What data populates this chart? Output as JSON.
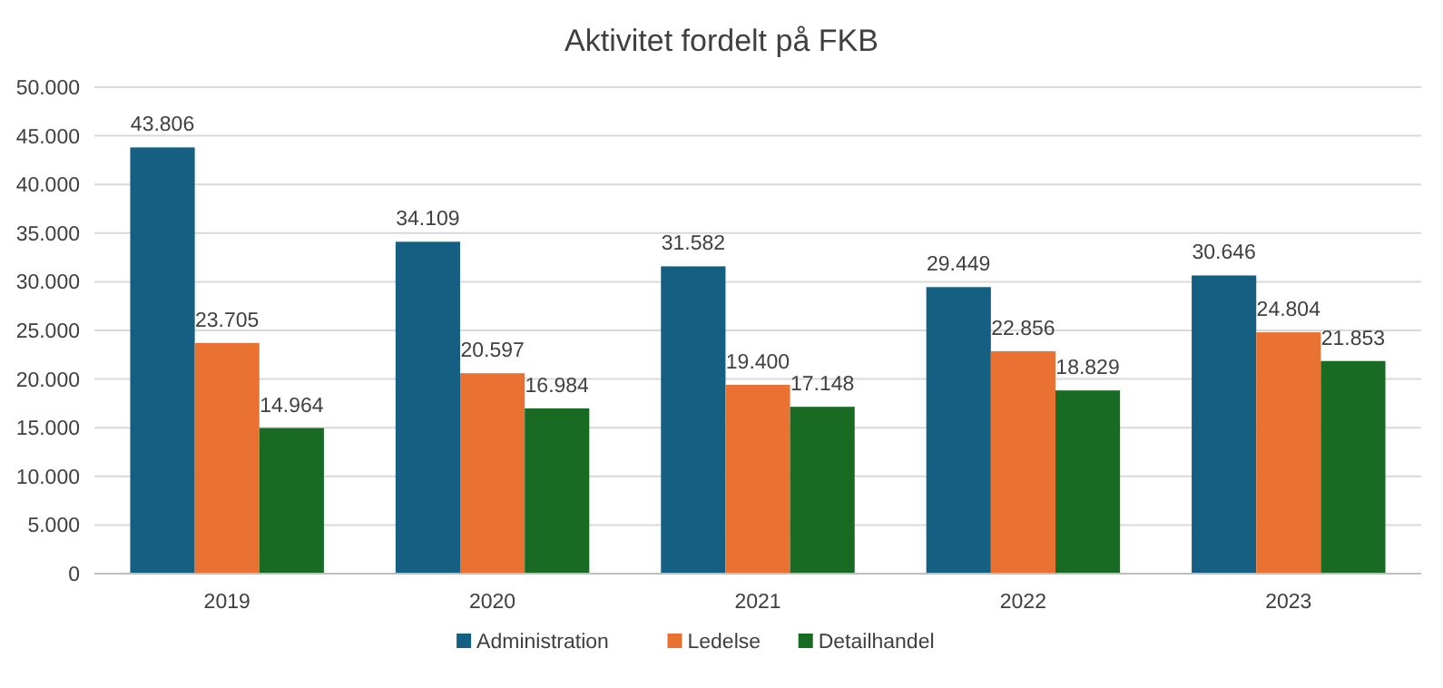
{
  "chart_data": {
    "type": "bar",
    "title": "Aktivitet fordelt på FKB",
    "categories": [
      "2019",
      "2020",
      "2021",
      "2022",
      "2023"
    ],
    "series": [
      {
        "name": "Administration",
        "color": "#156082",
        "values": [
          43806,
          34109,
          31582,
          29449,
          30646
        ],
        "value_labels": [
          "43.806",
          "34.109",
          "31.582",
          "29.449",
          "30.646"
        ]
      },
      {
        "name": "Ledelse",
        "color": "#e97132",
        "values": [
          23705,
          20597,
          19400,
          22856,
          24804
        ],
        "value_labels": [
          "23.705",
          "20.597",
          "19.400",
          "22.856",
          "24.804"
        ]
      },
      {
        "name": "Detailhandel",
        "color": "#196b24",
        "values": [
          14964,
          16984,
          17148,
          18829,
          21853
        ],
        "value_labels": [
          "14.964",
          "16.984",
          "17.148",
          "18.829",
          "21.853"
        ]
      }
    ],
    "ylim": [
      0,
      50000
    ],
    "yticks": [
      {
        "value": 0,
        "label": "0"
      },
      {
        "value": 5000,
        "label": "5.000"
      },
      {
        "value": 10000,
        "label": "10.000"
      },
      {
        "value": 15000,
        "label": "15.000"
      },
      {
        "value": 20000,
        "label": "20.000"
      },
      {
        "value": 25000,
        "label": "25.000"
      },
      {
        "value": 30000,
        "label": "30.000"
      },
      {
        "value": 35000,
        "label": "35.000"
      },
      {
        "value": 40000,
        "label": "40.000"
      },
      {
        "value": 45000,
        "label": "45.000"
      },
      {
        "value": 50000,
        "label": "50.000"
      }
    ],
    "grid": "y",
    "legend": "bottom"
  }
}
